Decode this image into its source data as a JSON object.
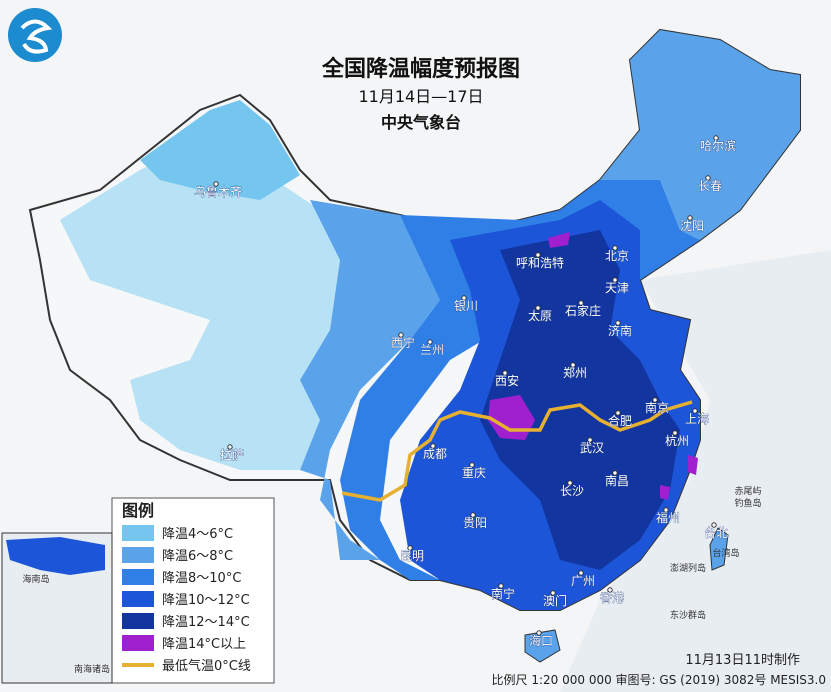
{
  "header": {
    "title": "全国降温幅度预报图",
    "date_range": "11月14日—17日",
    "agency": "中央气象台"
  },
  "legend": {
    "title": "图例",
    "items": [
      {
        "label": "降温4～6°C",
        "color": "#74c6ee"
      },
      {
        "label": "降温6～8°C",
        "color": "#5aa3ea"
      },
      {
        "label": "降温8～10°C",
        "color": "#2f7fe6"
      },
      {
        "label": "降温10～12°C",
        "color": "#1c55d8"
      },
      {
        "label": "降温12～14°C",
        "color": "#1335a0"
      },
      {
        "label": "降温14°C以上",
        "color": "#a020d0"
      },
      {
        "label": "最低气温0°C线",
        "color": "#e6b030"
      }
    ]
  },
  "cities": [
    {
      "label": "乌鲁木齐"
    },
    {
      "label": "哈尔滨"
    },
    {
      "label": "长春"
    },
    {
      "label": "沈阳"
    },
    {
      "label": "呼和浩特"
    },
    {
      "label": "北京"
    },
    {
      "label": "天津"
    },
    {
      "label": "银川"
    },
    {
      "label": "太原"
    },
    {
      "label": "石家庄"
    },
    {
      "label": "济南"
    },
    {
      "label": "西宁"
    },
    {
      "label": "兰州"
    },
    {
      "label": "郑州"
    },
    {
      "label": "西安"
    },
    {
      "label": "南京"
    },
    {
      "label": "上海"
    },
    {
      "label": "合肥"
    },
    {
      "label": "杭州"
    },
    {
      "label": "成都"
    },
    {
      "label": "武汉"
    },
    {
      "label": "重庆"
    },
    {
      "label": "长沙"
    },
    {
      "label": "南昌"
    },
    {
      "label": "拉萨"
    },
    {
      "label": "福州"
    },
    {
      "label": "台北"
    },
    {
      "label": "贵阳"
    },
    {
      "label": "昆明"
    },
    {
      "label": "南宁"
    },
    {
      "label": "广州"
    },
    {
      "label": "澳门"
    },
    {
      "label": "香港"
    },
    {
      "label": "海口"
    }
  ],
  "islands": [
    {
      "label": "赤尾屿"
    },
    {
      "label": "钓鱼岛"
    },
    {
      "label": "台湾岛"
    },
    {
      "label": "澎湖列岛"
    },
    {
      "label": "东沙群岛"
    },
    {
      "label": "海南岛"
    },
    {
      "label": "南海诸岛"
    }
  ],
  "footer": {
    "issued": "11月13日11时制作",
    "scale": "比例尺 1:20 000 000  审图号: GS (2019) 3082号 MESIS3.0"
  }
}
